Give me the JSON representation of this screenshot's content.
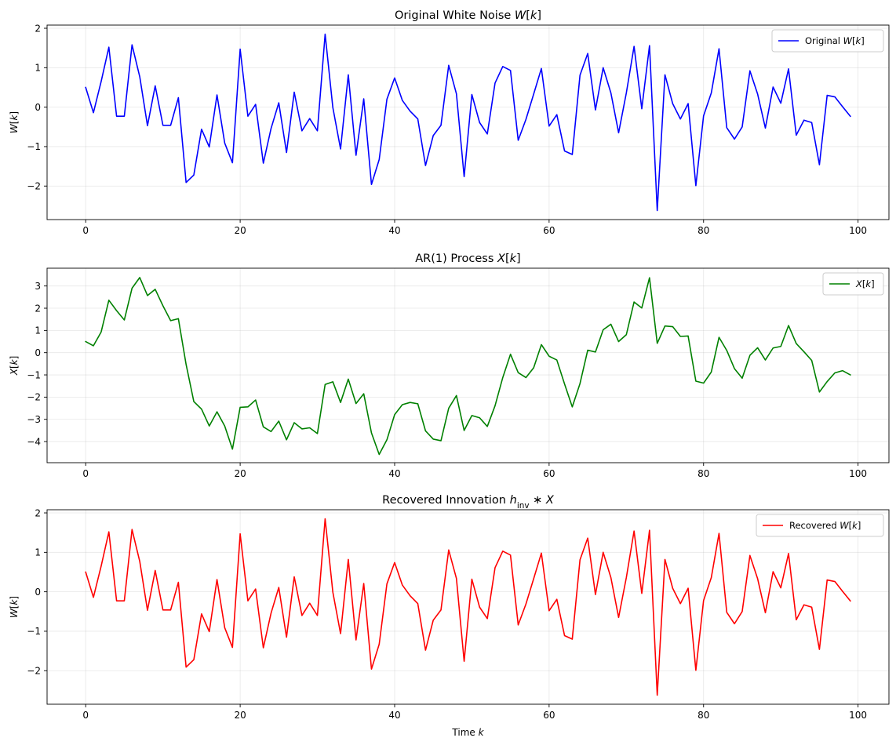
{
  "chart_data": [
    {
      "type": "line",
      "title": "Original White Noise W[k]",
      "title_parts": [
        {
          "t": "Original White Noise "
        },
        {
          "t": "W",
          "i": true
        },
        {
          "t": "["
        },
        {
          "t": "k",
          "i": true
        },
        {
          "t": "]"
        }
      ],
      "xlabel": "",
      "ylabel": "W[k]",
      "ylabel_parts": [
        {
          "t": "W",
          "i": true
        },
        {
          "t": "["
        },
        {
          "t": "k",
          "i": true
        },
        {
          "t": "]"
        }
      ],
      "xlim": [
        -5,
        104
      ],
      "ylim": [
        -2.85,
        2.08
      ],
      "xticks": [
        0,
        20,
        40,
        60,
        80,
        100
      ],
      "yticks": [
        -2,
        -1,
        0,
        1,
        2
      ],
      "ytick_labels": [
        "−2",
        "−1",
        "0",
        "1",
        "2"
      ],
      "grid": true,
      "legend_position": "top-right",
      "series": [
        {
          "name": "Original W[k]",
          "legend_parts": [
            {
              "t": "Original "
            },
            {
              "t": "W",
              "i": true
            },
            {
              "t": "["
            },
            {
              "t": "k",
              "i": true
            },
            {
              "t": "]"
            }
          ],
          "color": "#0000ff",
          "values": [
            0.5,
            -0.14,
            0.65,
            1.52,
            -0.23,
            -0.23,
            1.58,
            0.77,
            -0.47,
            0.54,
            -0.46,
            -0.46,
            0.24,
            -1.91,
            -1.72,
            -0.56,
            -1.01,
            0.31,
            -0.91,
            -1.41,
            1.47,
            -0.23,
            0.07,
            -1.42,
            -0.54,
            0.11,
            -1.15,
            0.38,
            -0.6,
            -0.29,
            -0.6,
            1.85,
            -0.01,
            -1.06,
            0.82,
            -1.22,
            0.21,
            -1.96,
            -1.33,
            0.2,
            0.74,
            0.17,
            -0.1,
            -0.3,
            -1.48,
            -0.72,
            -0.46,
            1.06,
            0.34,
            -1.76,
            0.32,
            -0.39,
            -0.68,
            0.61,
            1.03,
            0.93,
            -0.84,
            -0.31,
            0.33,
            0.98,
            -0.48,
            -0.19,
            -1.11,
            -1.2,
            0.81,
            1.36,
            -0.07,
            1.0,
            0.36,
            -0.65,
            0.36,
            1.54,
            -0.04,
            1.56,
            -2.62,
            0.82,
            0.09,
            -0.3,
            0.09,
            -1.99,
            -0.22,
            0.36,
            1.48,
            -0.52,
            -0.81,
            -0.5,
            0.92,
            0.33,
            -0.53,
            0.51,
            0.1,
            0.97,
            -0.71,
            -0.33,
            -0.39,
            -1.46,
            0.3,
            0.26,
            0.01,
            -0.23
          ]
        }
      ]
    },
    {
      "type": "line",
      "title": "AR(1) Process X[k]",
      "title_parts": [
        {
          "t": "AR(1) Process "
        },
        {
          "t": "X",
          "i": true
        },
        {
          "t": "["
        },
        {
          "t": "k",
          "i": true
        },
        {
          "t": "]"
        }
      ],
      "xlabel": "",
      "ylabel": "X[k]",
      "ylabel_parts": [
        {
          "t": "X",
          "i": true
        },
        {
          "t": "["
        },
        {
          "t": "k",
          "i": true
        },
        {
          "t": "]"
        }
      ],
      "xlim": [
        -5,
        104
      ],
      "ylim": [
        -4.95,
        3.8
      ],
      "xticks": [
        0,
        20,
        40,
        60,
        80,
        100
      ],
      "yticks": [
        -4,
        -3,
        -2,
        -1,
        0,
        1,
        2,
        3
      ],
      "ytick_labels": [
        "−4",
        "−3",
        "−2",
        "−1",
        "0",
        "1",
        "2",
        "3"
      ],
      "grid": true,
      "legend_position": "top-right",
      "series": [
        {
          "name": "X[k]",
          "legend_parts": [
            {
              "t": "X",
              "i": true
            },
            {
              "t": "["
            },
            {
              "t": "k",
              "i": true
            },
            {
              "t": "]"
            }
          ],
          "color": "#008000",
          "values": [
            0.5,
            0.31,
            0.93,
            2.36,
            1.89,
            1.47,
            2.9,
            3.38,
            2.57,
            2.85,
            2.11,
            1.44,
            1.53,
            -0.53,
            -2.2,
            -2.54,
            -3.3,
            -2.66,
            -3.3,
            -4.34,
            -2.46,
            -2.44,
            -2.13,
            -3.34,
            -3.55,
            -3.08,
            -3.92,
            -3.15,
            -3.43,
            -3.38,
            -3.64,
            -1.43,
            -1.31,
            -2.24,
            -1.19,
            -2.29,
            -1.85,
            -3.61,
            -4.58,
            -3.92,
            -2.79,
            -2.34,
            -2.24,
            -2.3,
            -3.52,
            -3.89,
            -3.96,
            -2.5,
            -1.93,
            -3.5,
            -2.83,
            -2.93,
            -3.32,
            -2.39,
            -1.12,
            -0.07,
            -0.9,
            -1.12,
            -0.68,
            0.36,
            -0.16,
            -0.33,
            -1.41,
            -2.44,
            -1.39,
            0.11,
            0.03,
            1.03,
            1.28,
            0.5,
            0.81,
            2.28,
            2.01,
            3.37,
            0.42,
            1.2,
            1.17,
            0.73,
            0.75,
            -1.28,
            -1.37,
            -0.87,
            0.69,
            0.1,
            -0.72,
            -1.15,
            -0.12,
            0.22,
            -0.33,
            0.21,
            0.28,
            1.22,
            0.41,
            0.04,
            -0.35,
            -1.77,
            -1.3,
            -0.91,
            -0.81,
            -1.0
          ]
        }
      ]
    },
    {
      "type": "line",
      "title": "Recovered Innovation h_inv * X",
      "title_parts": [
        {
          "t": "Recovered Innovation "
        },
        {
          "t": "h",
          "i": true
        },
        {
          "t": "inv",
          "sub": true
        },
        {
          "t": " ∗ "
        },
        {
          "t": "X",
          "i": true
        }
      ],
      "xlabel": "Time k",
      "xlabel_parts": [
        {
          "t": "Time "
        },
        {
          "t": "k",
          "i": true
        }
      ],
      "ylabel": "W[k]",
      "ylabel_parts": [
        {
          "t": "W",
          "i": true
        },
        {
          "t": "["
        },
        {
          "t": "k",
          "i": true
        },
        {
          "t": "]"
        }
      ],
      "xlim": [
        -5,
        104
      ],
      "ylim": [
        -2.85,
        2.08
      ],
      "xticks": [
        0,
        20,
        40,
        60,
        80,
        100
      ],
      "yticks": [
        -2,
        -1,
        0,
        1,
        2
      ],
      "ytick_labels": [
        "−2",
        "−1",
        "0",
        "1",
        "2"
      ],
      "grid": true,
      "legend_position": "top-right",
      "series": [
        {
          "name": "Recovered W[k]",
          "legend_parts": [
            {
              "t": "Recovered "
            },
            {
              "t": "W",
              "i": true
            },
            {
              "t": "["
            },
            {
              "t": "k",
              "i": true
            },
            {
              "t": "]"
            }
          ],
          "color": "#ff0000",
          "values": [
            0.5,
            -0.14,
            0.65,
            1.52,
            -0.23,
            -0.23,
            1.58,
            0.77,
            -0.47,
            0.54,
            -0.46,
            -0.46,
            0.24,
            -1.91,
            -1.72,
            -0.56,
            -1.01,
            0.31,
            -0.91,
            -1.41,
            1.47,
            -0.23,
            0.07,
            -1.42,
            -0.54,
            0.11,
            -1.15,
            0.38,
            -0.6,
            -0.29,
            -0.6,
            1.85,
            -0.01,
            -1.06,
            0.82,
            -1.22,
            0.21,
            -1.96,
            -1.33,
            0.2,
            0.74,
            0.17,
            -0.1,
            -0.3,
            -1.48,
            -0.72,
            -0.46,
            1.06,
            0.34,
            -1.76,
            0.32,
            -0.39,
            -0.68,
            0.61,
            1.03,
            0.93,
            -0.84,
            -0.31,
            0.33,
            0.98,
            -0.48,
            -0.19,
            -1.11,
            -1.2,
            0.81,
            1.36,
            -0.07,
            1.0,
            0.36,
            -0.65,
            0.36,
            1.54,
            -0.04,
            1.56,
            -2.62,
            0.82,
            0.09,
            -0.3,
            0.09,
            -1.99,
            -0.22,
            0.36,
            1.48,
            -0.52,
            -0.81,
            -0.5,
            0.92,
            0.33,
            -0.53,
            0.51,
            0.1,
            0.97,
            -0.71,
            -0.33,
            -0.39,
            -1.46,
            0.3,
            0.26,
            0.01,
            -0.23
          ]
        }
      ]
    }
  ]
}
